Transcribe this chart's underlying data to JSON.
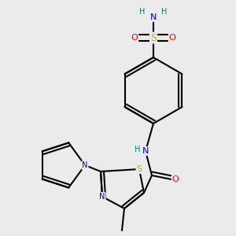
{
  "background_color": "#ebebeb",
  "atom_colors": {
    "C": "#000000",
    "N": "#0000cc",
    "O": "#ff0000",
    "S": "#ccaa00",
    "H": "#008080"
  },
  "bond_color": "#000000",
  "bond_width": 1.5,
  "dbo": 0.012
}
